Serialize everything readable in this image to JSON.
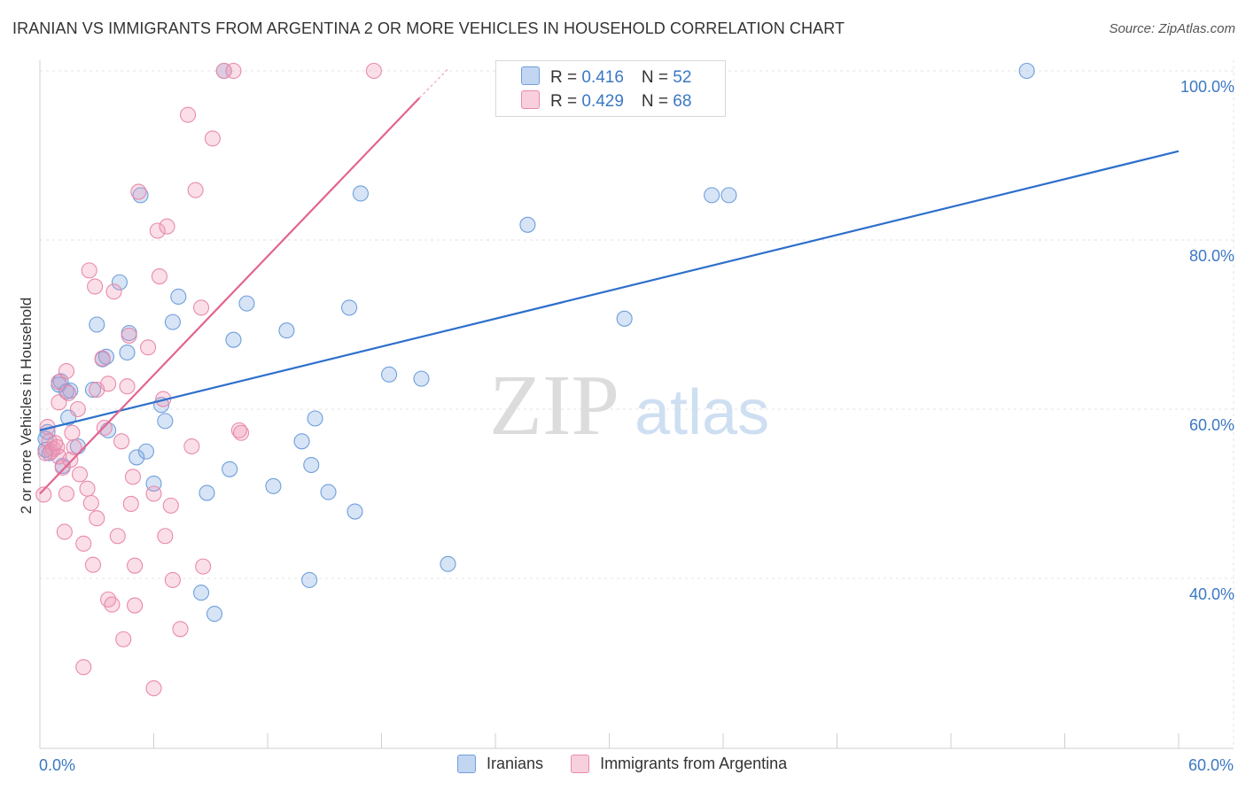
{
  "title": "IRANIAN VS IMMIGRANTS FROM ARGENTINA 2 OR MORE VEHICLES IN HOUSEHOLD CORRELATION CHART",
  "source": "Source: ZipAtlas.com",
  "watermark": {
    "zip": "ZIP",
    "atlas": "atlas"
  },
  "legend": {
    "rows": [
      {
        "r_label": "R = ",
        "r_value": "0.416",
        "n_label": "N = ",
        "n_value": "52"
      },
      {
        "r_label": "R = ",
        "r_value": "0.429",
        "n_label": "N = ",
        "n_value": "68"
      }
    ],
    "bottom": [
      "Iranians",
      "Immigrants from Argentina"
    ]
  },
  "chart_data": {
    "type": "scatter",
    "title": "IRANIAN VS IMMIGRANTS FROM ARGENTINA 2 OR MORE VEHICLES IN HOUSEHOLD CORRELATION CHART",
    "xlabel": "",
    "ylabel": "2 or more Vehicles in Household",
    "xlim": [
      0,
      60
    ],
    "ylim": [
      20,
      102
    ],
    "x_tick_labels": [
      "0.0%",
      "60.0%"
    ],
    "y_ticks": [
      {
        "value": 100,
        "label": "100.0%"
      },
      {
        "value": 80,
        "label": "80.0%"
      },
      {
        "value": 60,
        "label": "60.0%"
      },
      {
        "value": 40,
        "label": "40.0%"
      }
    ],
    "series": [
      {
        "name": "Iranians",
        "color": "#6f9fdc",
        "fill": "rgba(120,165,225,0.30)",
        "trend": {
          "x0": 0,
          "y0": 57.5,
          "x1": 60,
          "y1": 90.5,
          "color": "#2e6fcb"
        },
        "points": [
          [
            0.3,
            56.5
          ],
          [
            0.4,
            57.3
          ],
          [
            0.3,
            55.2
          ],
          [
            1.0,
            62.9
          ],
          [
            1.1,
            63.3
          ],
          [
            1.5,
            59.0
          ],
          [
            1.6,
            62.2
          ],
          [
            1.4,
            62.1
          ],
          [
            1.2,
            53.3
          ],
          [
            2.0,
            55.6
          ],
          [
            2.8,
            62.3
          ],
          [
            3.0,
            70.0
          ],
          [
            3.3,
            65.9
          ],
          [
            3.5,
            66.2
          ],
          [
            3.6,
            57.5
          ],
          [
            4.2,
            75.0
          ],
          [
            4.7,
            69.0
          ],
          [
            4.6,
            66.7
          ],
          [
            5.1,
            54.3
          ],
          [
            5.3,
            85.3
          ],
          [
            5.6,
            55.0
          ],
          [
            6.0,
            51.2
          ],
          [
            6.4,
            60.5
          ],
          [
            6.6,
            58.6
          ],
          [
            7.0,
            70.3
          ],
          [
            7.3,
            73.3
          ],
          [
            8.5,
            38.3
          ],
          [
            8.8,
            50.1
          ],
          [
            9.2,
            35.8
          ],
          [
            9.7,
            100.0
          ],
          [
            10.0,
            52.9
          ],
          [
            10.2,
            68.2
          ],
          [
            10.9,
            72.5
          ],
          [
            12.3,
            50.9
          ],
          [
            13.0,
            69.3
          ],
          [
            13.8,
            56.2
          ],
          [
            14.2,
            39.8
          ],
          [
            14.3,
            53.4
          ],
          [
            14.5,
            58.9
          ],
          [
            15.2,
            50.2
          ],
          [
            16.3,
            72.0
          ],
          [
            16.6,
            47.9
          ],
          [
            16.9,
            85.5
          ],
          [
            18.4,
            64.1
          ],
          [
            20.1,
            63.6
          ],
          [
            21.5,
            41.7
          ],
          [
            25.7,
            81.8
          ],
          [
            30.8,
            70.7
          ],
          [
            35.4,
            85.3
          ],
          [
            36.3,
            85.3
          ],
          [
            52.0,
            100.0
          ],
          [
            0.5,
            54.8
          ]
        ]
      },
      {
        "name": "Immigrants from Argentina",
        "color": "#e98aaa",
        "fill": "rgba(240,150,180,0.30)",
        "trend": {
          "x0": 0,
          "y0": 50.0,
          "x1": 20.0,
          "y1": 96.8,
          "color": "#e2648f",
          "dash_x1": 21.5,
          "dash_y1": 100.2
        },
        "points": [
          [
            0.2,
            49.9
          ],
          [
            0.3,
            54.8
          ],
          [
            0.4,
            57.9
          ],
          [
            0.5,
            56.2
          ],
          [
            0.6,
            55.0
          ],
          [
            0.7,
            55.3
          ],
          [
            0.8,
            56.0
          ],
          [
            0.9,
            55.5
          ],
          [
            1.0,
            60.8
          ],
          [
            1.0,
            54.4
          ],
          [
            1.0,
            63.2
          ],
          [
            1.2,
            53.1
          ],
          [
            1.3,
            45.5
          ],
          [
            1.4,
            64.5
          ],
          [
            1.4,
            50.0
          ],
          [
            1.5,
            61.9
          ],
          [
            1.6,
            54.0
          ],
          [
            1.7,
            57.2
          ],
          [
            1.8,
            55.5
          ],
          [
            2.0,
            60.0
          ],
          [
            2.1,
            52.3
          ],
          [
            2.3,
            44.1
          ],
          [
            2.3,
            29.5
          ],
          [
            2.5,
            50.6
          ],
          [
            2.6,
            76.4
          ],
          [
            2.7,
            48.9
          ],
          [
            2.8,
            41.6
          ],
          [
            2.9,
            74.5
          ],
          [
            3.0,
            47.1
          ],
          [
            3.0,
            62.3
          ],
          [
            3.3,
            66.0
          ],
          [
            3.4,
            57.8
          ],
          [
            3.6,
            63.0
          ],
          [
            3.6,
            37.5
          ],
          [
            3.8,
            36.9
          ],
          [
            3.9,
            73.9
          ],
          [
            4.1,
            45.0
          ],
          [
            4.3,
            56.2
          ],
          [
            4.4,
            32.8
          ],
          [
            4.6,
            62.7
          ],
          [
            4.7,
            68.7
          ],
          [
            4.8,
            48.8
          ],
          [
            4.9,
            52.0
          ],
          [
            5.0,
            41.5
          ],
          [
            5.0,
            36.8
          ],
          [
            5.2,
            85.7
          ],
          [
            5.7,
            67.3
          ],
          [
            6.0,
            50.0
          ],
          [
            6.0,
            27.0
          ],
          [
            6.2,
            81.1
          ],
          [
            6.3,
            75.7
          ],
          [
            6.5,
            61.2
          ],
          [
            6.6,
            45.0
          ],
          [
            6.7,
            81.6
          ],
          [
            6.9,
            48.6
          ],
          [
            7.0,
            39.8
          ],
          [
            7.4,
            34.0
          ],
          [
            7.8,
            94.8
          ],
          [
            8.0,
            55.6
          ],
          [
            8.2,
            85.9
          ],
          [
            8.5,
            72.0
          ],
          [
            8.6,
            41.4
          ],
          [
            9.1,
            92.0
          ],
          [
            9.7,
            100.0
          ],
          [
            10.2,
            100.0
          ],
          [
            10.5,
            57.5
          ],
          [
            10.6,
            57.2
          ],
          [
            17.6,
            100.0
          ]
        ]
      }
    ]
  }
}
